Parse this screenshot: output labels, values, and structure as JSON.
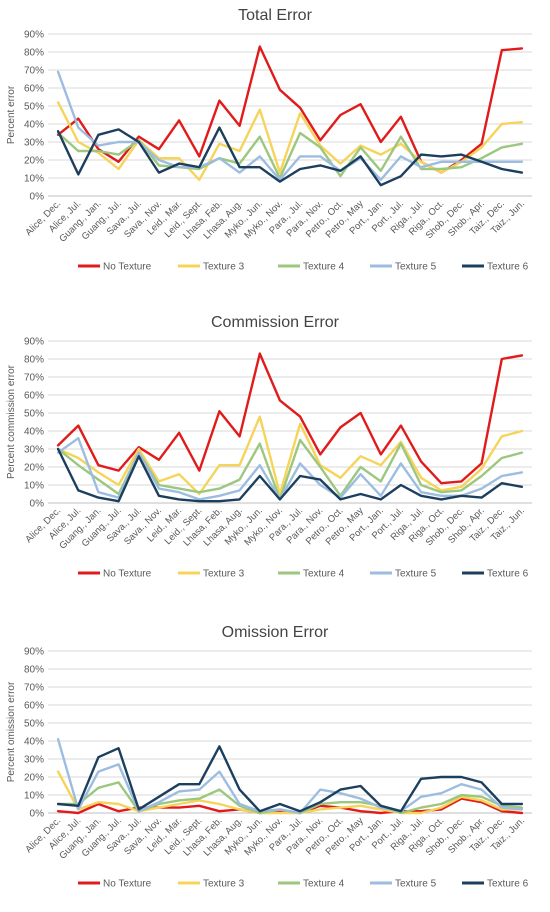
{
  "chart_data": [
    {
      "type": "line",
      "title": "Total Error",
      "xlabel": "",
      "ylabel": "Percent error",
      "ylim": [
        0,
        90
      ],
      "ytick_step": 10,
      "ytick_labels": [
        "0%",
        "10%",
        "20%",
        "30%",
        "40%",
        "50%",
        "60%",
        "70%",
        "80%",
        "90%"
      ],
      "grid": true,
      "legend": "bottom",
      "categories": [
        "Alice, Dec.",
        "Alice, Jul.",
        "Guang., Jan.",
        "Guang., Jul.",
        "Sava., Jul.",
        "Sava., Nov.",
        "Leid., Mar.",
        "Leid., Sept.",
        "Lhasa, Feb.",
        "Lhasa, Aug.",
        "Myko., Jun.",
        "Myko., Nov.",
        "Para., Jul.",
        "Para., Nov.",
        "Petro., Oct.",
        "Petro., May",
        "Port., Jan.",
        "Port., Jul.",
        "Riga., Jul.",
        "Riga., Oct.",
        "Shob., Dec.",
        "Shob., Apr.",
        "Taiz., Dec.",
        "Taiz., Jun."
      ],
      "series": [
        {
          "name": "No Texture",
          "color": "#e11b1b",
          "values": [
            34,
            43,
            26,
            19,
            33,
            26,
            42,
            22,
            53,
            39,
            83,
            59,
            49,
            31,
            45,
            51,
            30,
            44,
            19,
            13,
            20,
            29,
            81,
            82
          ]
        },
        {
          "name": "Texture 3",
          "color": "#f6d45a",
          "values": [
            52,
            30,
            24,
            15,
            31,
            21,
            21,
            9,
            29,
            25,
            48,
            13,
            46,
            28,
            18,
            28,
            23,
            29,
            19,
            13,
            19,
            27,
            40,
            41
          ]
        },
        {
          "name": "Texture 4",
          "color": "#9bc77f",
          "values": [
            35,
            25,
            25,
            23,
            31,
            17,
            16,
            15,
            21,
            18,
            33,
            10,
            35,
            27,
            11,
            27,
            14,
            33,
            15,
            15,
            16,
            21,
            27,
            29
          ]
        },
        {
          "name": "Texture 5",
          "color": "#9dbde0",
          "values": [
            69,
            38,
            28,
            30,
            30,
            20,
            16,
            16,
            21,
            13,
            22,
            9,
            22,
            22,
            14,
            21,
            9,
            22,
            16,
            19,
            19,
            19,
            19,
            19
          ]
        },
        {
          "name": "Texture 6",
          "color": "#1d3f5e",
          "values": [
            36,
            12,
            34,
            37,
            30,
            13,
            18,
            16,
            38,
            16,
            16,
            8,
            15,
            17,
            14,
            22,
            6,
            11,
            23,
            22,
            23,
            19,
            15,
            13
          ]
        }
      ]
    },
    {
      "type": "line",
      "title": "Commission Error",
      "xlabel": "",
      "ylabel": "Percent commission error",
      "ylim": [
        0,
        90
      ],
      "ytick_step": 10,
      "ytick_labels": [
        "0%",
        "10%",
        "20%",
        "30%",
        "40%",
        "50%",
        "60%",
        "70%",
        "80%",
        "90%"
      ],
      "grid": true,
      "legend": "bottom",
      "categories": [
        "Alice, Dec.",
        "Alice, Jul.",
        "Guang., Jan.",
        "Guang., Jul.",
        "Sava., Jul.",
        "Sava., Nov.",
        "Leid., Mar.",
        "Leid., Sept.",
        "Lhasa, Feb.",
        "Lhasa, Aug.",
        "Myko., Jun.",
        "Myko., Nov.",
        "Para., Jul.",
        "Para., Nov.",
        "Petro., Oct.",
        "Petro., May",
        "Port., Jan.",
        "Port., Jul.",
        "Riga., Jul.",
        "Riga., Oct.",
        "Shob., Dec.",
        "Shob., Apr.",
        "Taiz., Dec.",
        "Taiz., Jun."
      ],
      "series": [
        {
          "name": "No Texture",
          "color": "#e11b1b",
          "values": [
            32,
            43,
            21,
            18,
            31,
            24,
            39,
            18,
            51,
            37,
            83,
            57,
            48,
            27,
            42,
            50,
            27,
            43,
            23,
            11,
            12,
            22,
            80,
            82
          ]
        },
        {
          "name": "Texture 3",
          "color": "#f6d45a",
          "values": [
            30,
            25,
            17,
            10,
            30,
            12,
            16,
            5,
            21,
            21,
            48,
            5,
            44,
            21,
            14,
            26,
            21,
            34,
            14,
            7,
            9,
            19,
            37,
            40
          ]
        },
        {
          "name": "Texture 4",
          "color": "#9bc77f",
          "values": [
            30,
            21,
            13,
            5,
            28,
            10,
            8,
            6,
            8,
            13,
            33,
            2,
            35,
            20,
            4,
            20,
            12,
            33,
            10,
            6,
            7,
            15,
            25,
            28
          ]
        },
        {
          "name": "Texture 5",
          "color": "#9dbde0",
          "values": [
            28,
            36,
            6,
            3,
            28,
            8,
            6,
            2,
            4,
            7,
            21,
            2,
            22,
            10,
            3,
            16,
            4,
            22,
            6,
            4,
            4,
            8,
            15,
            17
          ]
        },
        {
          "name": "Texture 6",
          "color": "#1d3f5e",
          "values": [
            30,
            7,
            3,
            1,
            26,
            4,
            2,
            1,
            1,
            2,
            15,
            2,
            15,
            13,
            2,
            5,
            2,
            10,
            4,
            2,
            4,
            3,
            11,
            9
          ]
        }
      ]
    },
    {
      "type": "line",
      "title": "Omission Error",
      "xlabel": "",
      "ylabel": "Percent omission error",
      "ylim": [
        0,
        90
      ],
      "ytick_step": 10,
      "ytick_labels": [
        "0%",
        "10%",
        "20%",
        "30%",
        "40%",
        "50%",
        "60%",
        "70%",
        "80%",
        "90%"
      ],
      "grid": true,
      "legend": "bottom",
      "categories": [
        "Alice, Dec.",
        "Alice, Jul.",
        "Guang., Jan.",
        "Guang., Jul.",
        "Sava., Jul.",
        "Sava., Nov.",
        "Leid., Mar.",
        "Leid., Sept.",
        "Lhasa, Feb.",
        "Lhasa, Aug.",
        "Myko., Jun.",
        "Myko., Nov.",
        "Para., Jul.",
        "Para., Nov.",
        "Petro., Oct.",
        "Petro., May",
        "Port., Jan.",
        "Port., Jul.",
        "Riga., Jul.",
        "Riga., Oct.",
        "Shob., Dec.",
        "Shob., Apr.",
        "Taiz., Dec.",
        "Taiz., Jun."
      ],
      "series": [
        {
          "name": "No Texture",
          "color": "#e11b1b",
          "values": [
            1,
            0,
            5,
            1,
            3,
            3,
            3,
            4,
            1,
            2,
            0,
            1,
            0,
            4,
            3,
            1,
            0,
            1,
            1,
            2,
            8,
            6,
            1,
            0
          ]
        },
        {
          "name": "Texture 3",
          "color": "#f6d45a",
          "values": [
            23,
            2,
            6,
            5,
            1,
            3,
            5,
            7,
            5,
            2,
            0,
            0,
            0,
            2,
            3,
            4,
            2,
            0,
            0,
            3,
            9,
            7,
            2,
            2
          ]
        },
        {
          "name": "Texture 4",
          "color": "#9bc77f",
          "values": [
            5,
            5,
            14,
            17,
            1,
            5,
            7,
            8,
            13,
            4,
            0,
            2,
            0,
            5,
            6,
            6,
            4,
            0,
            3,
            5,
            10,
            9,
            4,
            3
          ]
        },
        {
          "name": "Texture 5",
          "color": "#9dbde0",
          "values": [
            41,
            2,
            23,
            27,
            1,
            6,
            12,
            13,
            23,
            5,
            1,
            2,
            0,
            13,
            11,
            8,
            3,
            1,
            9,
            11,
            16,
            13,
            3,
            2
          ]
        },
        {
          "name": "Texture 6",
          "color": "#1d3f5e",
          "values": [
            5,
            4,
            31,
            36,
            2,
            9,
            16,
            16,
            37,
            13,
            1,
            5,
            1,
            6,
            13,
            15,
            4,
            1,
            19,
            20,
            20,
            17,
            5,
            5
          ]
        }
      ]
    }
  ]
}
